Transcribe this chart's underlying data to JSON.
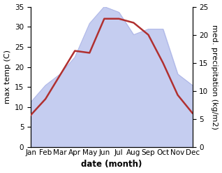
{
  "months": [
    "Jan",
    "Feb",
    "Mar",
    "Apr",
    "May",
    "Jun",
    "Jul",
    "Aug",
    "Sep",
    "Oct",
    "Nov",
    "Dec"
  ],
  "temperature": [
    8,
    12,
    18,
    24,
    23.5,
    32,
    32,
    31,
    28,
    21,
    13,
    8.5
  ],
  "precipitation": [
    8,
    11,
    13,
    16,
    22,
    25,
    24,
    20,
    21,
    21,
    13,
    11
  ],
  "temp_color": "#b03030",
  "precip_fill_color": "#c5cdf0",
  "precip_edge_color": "#b0b8e8",
  "ylabel_left": "max temp (C)",
  "ylabel_right": "med. precipitation (kg/m2)",
  "xlabel": "date (month)",
  "ylim_left": [
    0,
    35
  ],
  "ylim_right": [
    0,
    25
  ],
  "yticks_left": [
    0,
    5,
    10,
    15,
    20,
    25,
    30,
    35
  ],
  "yticks_right": [
    0,
    5,
    10,
    15,
    20,
    25
  ],
  "label_fontsize": 8,
  "tick_fontsize": 7.5
}
